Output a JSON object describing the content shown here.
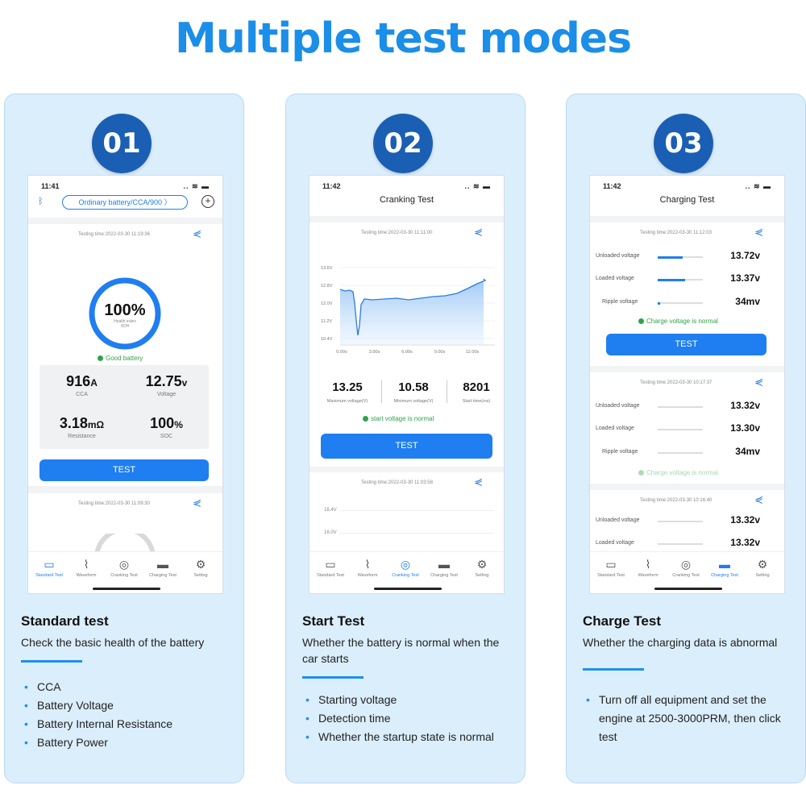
{
  "headline": "Multiple test modes",
  "cards": [
    {
      "badge": "01",
      "phone": {
        "time": "11:41",
        "battery_selector": "Ordinary battery/CCA/900",
        "testing_time_1": "Testing time:2022-03-30 11:19:36",
        "gauge_value": "100%",
        "gauge_sub_1": "Health index",
        "gauge_sub_2": "SOH",
        "health_fraction": 1.0,
        "status": "Good battery",
        "metrics": [
          {
            "value": "916",
            "unit": "A",
            "label": "CCA"
          },
          {
            "value": "12.75",
            "unit": "v",
            "label": "Voltage"
          },
          {
            "value": "3.18",
            "unit": "mΩ",
            "label": "Resistance"
          },
          {
            "value": "100",
            "unit": "%",
            "label": "SOC"
          }
        ],
        "button": "TEST",
        "testing_time_2": "Testing time:2022-03-30 11:09:30"
      },
      "title": "Standard test",
      "desc": "Check the basic health of the battery",
      "bullets": [
        "CCA",
        "Battery Voltage",
        "Battery Internal Resistance",
        "Battery Power"
      ]
    },
    {
      "badge": "02",
      "phone": {
        "time": "11:42",
        "screen_title": "Cranking Test",
        "testing_time_1": "Testing time:2022-03-30 11:11:00",
        "chart_y_ticks": [
          "13.6V",
          "12.8V",
          "12.0V",
          "11.2V",
          "10.4V"
        ],
        "chart_x_ticks": [
          "0.00s",
          "3.00s",
          "6.00s",
          "9.00s",
          "12.00s"
        ],
        "stats": [
          {
            "value": "13.25",
            "label": "Maximum voltage(V)"
          },
          {
            "value": "10.58",
            "label": "Minimum voltage(V)"
          },
          {
            "value": "8201",
            "label": "Start time(ms)"
          }
        ],
        "status": "start voltage is normal",
        "button": "TEST",
        "testing_time_2": "Testing time:2022-03-30 11:03:58",
        "chart2_y_ticks": [
          "16.4V",
          "16.0V"
        ]
      },
      "title": "Start Test",
      "desc": "Whether the battery is normal when the car starts",
      "bullets": [
        "Starting voltage",
        "Detection time",
        "Whether the startup state is normal"
      ]
    },
    {
      "badge": "03",
      "phone": {
        "time": "11:42",
        "screen_title": "Charging Test",
        "testing_time_1": "Testing time:2022-03-30 11:12:03",
        "group1": [
          {
            "label": "Unloaded voltage",
            "value": "13.72v",
            "fill": 0.55
          },
          {
            "label": "Loaded voltage",
            "value": "13.37v",
            "fill": 0.6
          },
          {
            "label": "Ripple   voltage",
            "value": "34mv",
            "fill": 0.05
          }
        ],
        "status": "Charge voltage is normal",
        "button": "TEST",
        "testing_time_2": "Testing time:2022-03-30 10:17:37",
        "group2": [
          {
            "label": "Unloaded voltage",
            "value": "13.32v",
            "fill": 0
          },
          {
            "label": "Loaded voltage",
            "value": "13.30v",
            "fill": 0
          },
          {
            "label": "Ripple   voltage",
            "value": "34mv",
            "fill": 0
          }
        ],
        "status2": "Charge voltage is normal",
        "testing_time_3": "Testing time:2022-03-30 10:16:40",
        "group3": [
          {
            "label": "Unloaded voltage",
            "value": "13.32v",
            "fill": 0
          },
          {
            "label": "Loaded voltage",
            "value": "13.32v",
            "fill": 0
          }
        ]
      },
      "title": "Charge Test",
      "desc": "Whether the charging data is abnormal",
      "bullets": [
        "Turn off all equipment and set the engine at 2500-3000PRM, then click test"
      ]
    }
  ],
  "tabs": [
    "Standard Test",
    "Waveform",
    "Cranking Test",
    "Charging Test",
    "Setting"
  ],
  "colors": {
    "accent": "#1f7ef0",
    "headline": "#1a8ee8",
    "badge": "#1a5fb4",
    "ok": "#2fa34a",
    "card_bg": "#dbeefb"
  }
}
